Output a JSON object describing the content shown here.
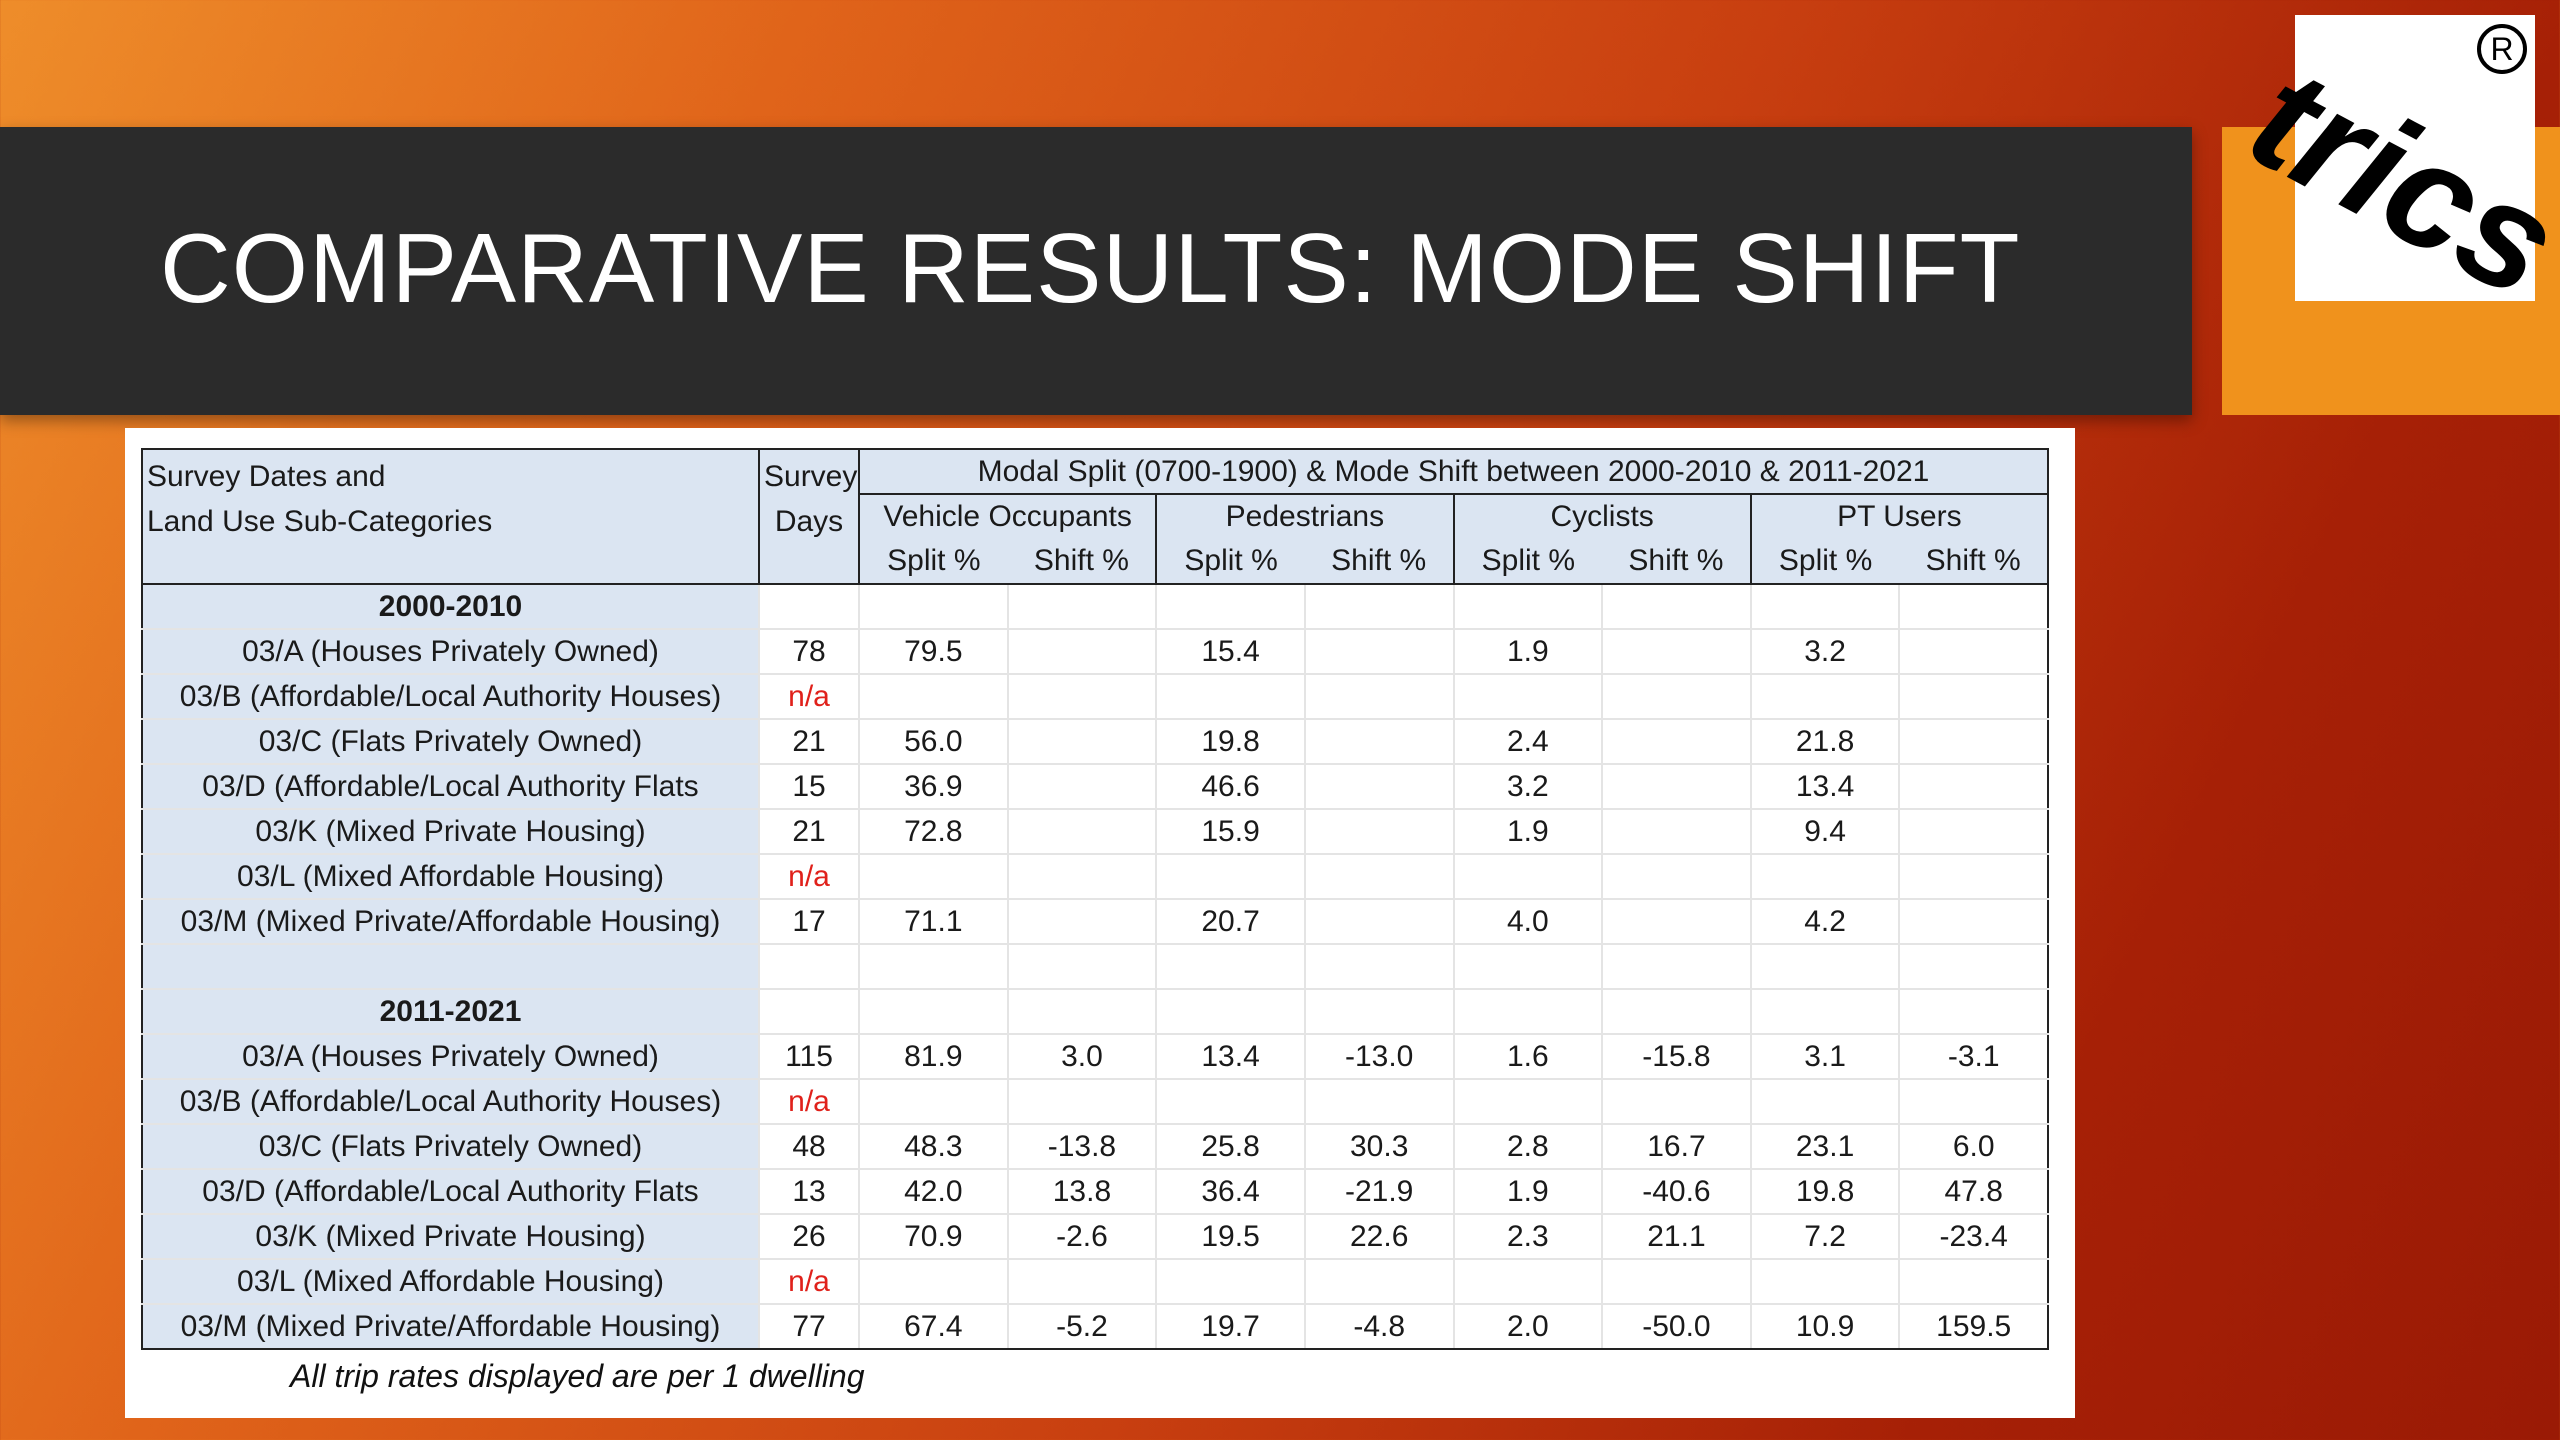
{
  "slide": {
    "title": "COMPARATIVE RESULTS: MODE SHIFT",
    "footnote": "All trip rates displayed are per 1 dwelling"
  },
  "logo": {
    "text": "trics",
    "registered": "R"
  },
  "table": {
    "header": {
      "category": "Survey Dates and Land Use Sub-Categories",
      "category_line1": "Survey Dates and",
      "category_line2": "Land Use Sub-Categories",
      "days_line1": "Survey",
      "days_line2": "Days",
      "span_title": "Modal Split (0700-1900) & Mode Shift between 2000-2010 & 2011-2021",
      "groups": [
        "Vehicle Occupants",
        "Pedestrians",
        "Cyclists",
        "PT Users"
      ],
      "split_label": "Split %",
      "shift_label": "Shift %"
    },
    "rows": [
      {
        "type": "section",
        "label": "2000-2010"
      },
      {
        "type": "data",
        "label": "03/A (Houses Privately Owned)",
        "days": "78",
        "vals": [
          "79.5",
          "",
          "15.4",
          "",
          "1.9",
          "",
          "3.2",
          ""
        ]
      },
      {
        "type": "data",
        "label": "03/B (Affordable/Local Authority Houses)",
        "days": "n/a",
        "na": true,
        "vals": [
          "",
          "",
          "",
          "",
          "",
          "",
          "",
          ""
        ]
      },
      {
        "type": "data",
        "label": "03/C (Flats Privately Owned)",
        "days": "21",
        "vals": [
          "56.0",
          "",
          "19.8",
          "",
          "2.4",
          "",
          "21.8",
          ""
        ]
      },
      {
        "type": "data",
        "label": "03/D (Affordable/Local Authority Flats",
        "days": "15",
        "vals": [
          "36.9",
          "",
          "46.6",
          "",
          "3.2",
          "",
          "13.4",
          ""
        ]
      },
      {
        "type": "data",
        "label": "03/K (Mixed Private Housing)",
        "days": "21",
        "vals": [
          "72.8",
          "",
          "15.9",
          "",
          "1.9",
          "",
          "9.4",
          ""
        ]
      },
      {
        "type": "data",
        "label": "03/L (Mixed Affordable Housing)",
        "days": "n/a",
        "na": true,
        "vals": [
          "",
          "",
          "",
          "",
          "",
          "",
          "",
          ""
        ]
      },
      {
        "type": "data",
        "label": "03/M (Mixed Private/Affordable Housing)",
        "days": "17",
        "vals": [
          "71.1",
          "",
          "20.7",
          "",
          "4.0",
          "",
          "4.2",
          ""
        ]
      },
      {
        "type": "spacer"
      },
      {
        "type": "section",
        "label": "2011-2021"
      },
      {
        "type": "data",
        "label": "03/A (Houses Privately Owned)",
        "days": "115",
        "vals": [
          "81.9",
          "3.0",
          "13.4",
          "-13.0",
          "1.6",
          "-15.8",
          "3.1",
          "-3.1"
        ]
      },
      {
        "type": "data",
        "label": "03/B (Affordable/Local Authority Houses)",
        "days": "n/a",
        "na": true,
        "vals": [
          "",
          "",
          "",
          "",
          "",
          "",
          "",
          ""
        ]
      },
      {
        "type": "data",
        "label": "03/C (Flats Privately Owned)",
        "days": "48",
        "vals": [
          "48.3",
          "-13.8",
          "25.8",
          "30.3",
          "2.8",
          "16.7",
          "23.1",
          "6.0"
        ]
      },
      {
        "type": "data",
        "label": "03/D (Affordable/Local Authority Flats",
        "days": "13",
        "vals": [
          "42.0",
          "13.8",
          "36.4",
          "-21.9",
          "1.9",
          "-40.6",
          "19.8",
          "47.8"
        ]
      },
      {
        "type": "data",
        "label": "03/K (Mixed Private Housing)",
        "days": "26",
        "vals": [
          "70.9",
          "-2.6",
          "19.5",
          "22.6",
          "2.3",
          "21.1",
          "7.2",
          "-23.4"
        ]
      },
      {
        "type": "data",
        "label": "03/L (Mixed Affordable Housing)",
        "days": "n/a",
        "na": true,
        "vals": [
          "",
          "",
          "",
          "",
          "",
          "",
          "",
          ""
        ]
      },
      {
        "type": "data",
        "label": "03/M (Mixed Private/Affordable Housing)",
        "days": "77",
        "vals": [
          "67.4",
          "-5.2",
          "19.7",
          "-4.8",
          "2.0",
          "-50.0",
          "10.9",
          "159.5"
        ]
      }
    ]
  },
  "colors": {
    "header_fill": "#dbe5f2",
    "title_bar": "#2b2b2b",
    "logo_orange": "#f0921c",
    "na_text": "#e0211b"
  }
}
